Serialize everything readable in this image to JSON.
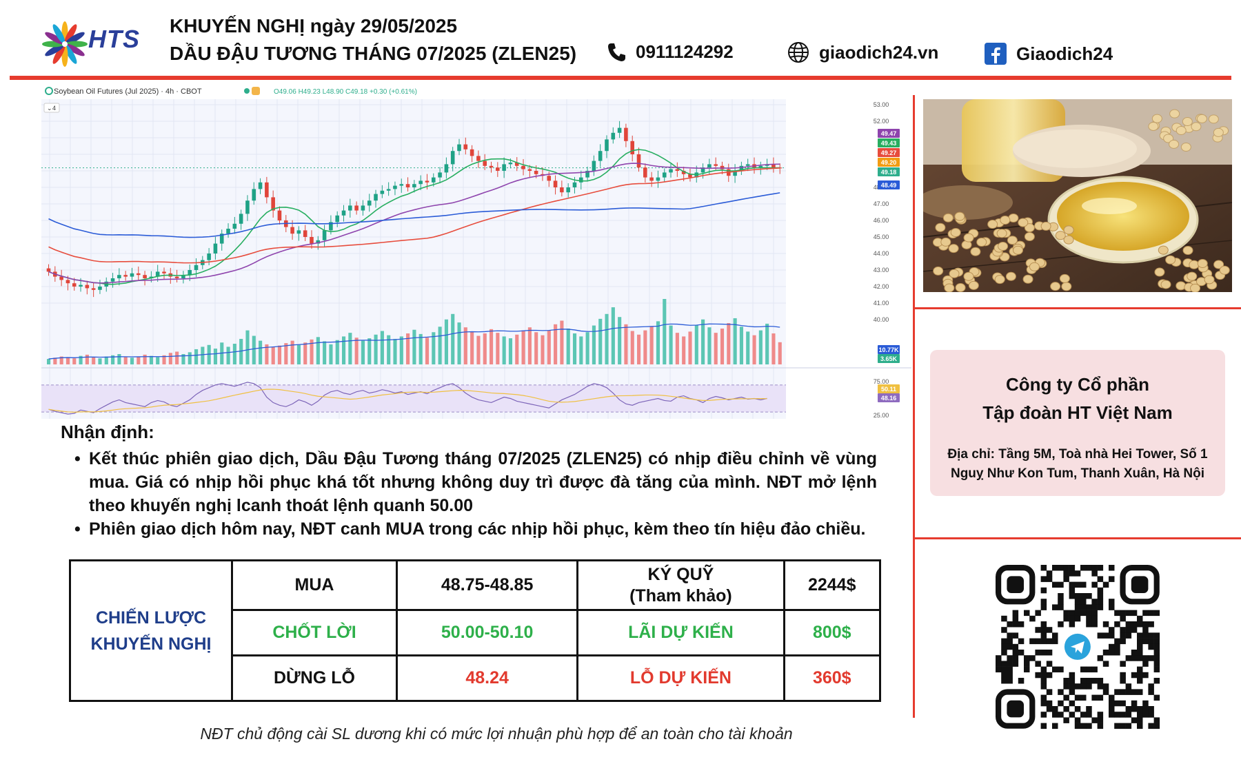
{
  "brand": {
    "logo_text": "HTS",
    "logo_petal_colors": [
      "#f6b21b",
      "#e63b2e",
      "#2a3f9a",
      "#3fb24a",
      "#8a2f8f",
      "#1aa6d6"
    ]
  },
  "header": {
    "line1": "KHUYẾN NGHỊ ngày 29/05/2025",
    "line2": "DẦU ĐẬU TƯƠNG THÁNG 07/2025 (ZLEN25)",
    "phone": "0911124292",
    "website": "giaodich24.vn",
    "facebook": "Giaodich24",
    "phone_icon": "phone-icon",
    "website_icon": "globe-icon",
    "facebook_icon": "facebook-icon"
  },
  "chart_data": {
    "type": "candlestick",
    "symbol_label": "Soybean Oil Futures (Jul 2025) · 4h · CBOT",
    "ohlc_label": "O49.06 H49.23 L48.90 C49.18 +0.30 (+0.61%)",
    "indicator_count": "4",
    "price_axis": {
      "range": [
        40,
        53
      ],
      "ticks": [
        "53.00",
        "52.00",
        "48.00",
        "47.00",
        "46.00",
        "45.00",
        "44.00",
        "43.00",
        "42.00",
        "41.00",
        "40.00"
      ]
    },
    "rsi_axis": {
      "ticks": [
        "75.00",
        "25.00"
      ]
    },
    "price_tags": [
      {
        "value": "49.47",
        "color": "#8e44ad"
      },
      {
        "value": "49.43",
        "color": "#27ae60"
      },
      {
        "value": "49.27",
        "color": "#e74c3c"
      },
      {
        "value": "49.20",
        "color": "#f39c12"
      },
      {
        "value": "49.18",
        "color": "#2eae8c"
      },
      {
        "value": "48.49",
        "color": "#2a5bd7"
      }
    ],
    "volume_tags": [
      {
        "value": "10.77K",
        "color": "#2a5bd7"
      },
      {
        "value": "3.65K",
        "color": "#2eae8c"
      }
    ],
    "rsi_tags": [
      {
        "value": "50.11",
        "color": "#f0c040"
      },
      {
        "value": "48.16",
        "color": "#8e6bbf"
      }
    ],
    "closes": [
      42.9,
      42.6,
      42.4,
      42.2,
      42.0,
      42.1,
      41.9,
      41.8,
      42.0,
      42.3,
      42.5,
      42.7,
      42.6,
      42.8,
      42.7,
      42.5,
      42.6,
      42.9,
      42.8,
      42.6,
      42.5,
      42.7,
      43.0,
      43.3,
      43.6,
      44.0,
      44.6,
      45.2,
      45.5,
      45.8,
      46.4,
      47.2,
      47.9,
      48.3,
      47.4,
      46.6,
      46.0,
      45.6,
      45.2,
      45.4,
      45.0,
      44.6,
      44.8,
      45.4,
      45.9,
      46.3,
      46.6,
      46.9,
      46.6,
      46.9,
      47.2,
      47.6,
      47.8,
      47.9,
      48.1,
      48.2,
      48.0,
      48.2,
      48.4,
      48.3,
      48.6,
      48.9,
      49.4,
      50.2,
      50.6,
      50.3,
      49.9,
      49.6,
      49.3,
      49.2,
      49.0,
      49.4,
      49.5,
      49.3,
      49.1,
      49.0,
      48.8,
      48.7,
      48.4,
      48.0,
      47.7,
      48.0,
      48.3,
      48.6,
      49.0,
      49.6,
      50.2,
      50.9,
      51.3,
      51.6,
      50.8,
      50.0,
      49.2,
      48.6,
      48.4,
      48.6,
      48.9,
      49.1,
      49.0,
      48.8,
      48.6,
      48.9,
      49.2,
      49.4,
      49.3,
      49.1,
      48.7,
      49.0,
      49.3,
      49.4,
      49.2,
      49.3,
      49.4,
      49.2,
      49.18
    ],
    "volumes": [
      900,
      1100,
      1300,
      1200,
      1000,
      1400,
      1600,
      1200,
      1000,
      1300,
      1500,
      1700,
      1200,
      1100,
      1300,
      1600,
      1400,
      1200,
      1500,
      1900,
      2100,
      1700,
      2000,
      2500,
      2900,
      3200,
      2600,
      3600,
      2900,
      3400,
      4200,
      5600,
      4700,
      3900,
      3300,
      2900,
      3100,
      3500,
      3900,
      3200,
      3600,
      4100,
      4500,
      3800,
      3300,
      4000,
      4600,
      5200,
      4400,
      3900,
      4300,
      4900,
      5500,
      4800,
      4200,
      4600,
      5100,
      5700,
      5000,
      4400,
      5300,
      6200,
      7400,
      8300,
      6900,
      6100,
      5400,
      4700,
      5100,
      5800,
      5200,
      4600,
      4300,
      4900,
      5600,
      6100,
      5300,
      4800,
      5600,
      6600,
      7200,
      5900,
      5100,
      4600,
      5300,
      6400,
      7500,
      8300,
      9400,
      7800,
      6600,
      5500,
      4900,
      5600,
      6300,
      7100,
      10770,
      6400,
      5200,
      4600,
      5400,
      6500,
      7400,
      6100,
      5200,
      5900,
      6800,
      7600,
      6200,
      5400,
      4800,
      5600,
      6700,
      5100,
      3650
    ],
    "rsi": [
      34,
      31,
      29,
      27,
      28,
      33,
      31,
      29,
      35,
      40,
      45,
      48,
      44,
      42,
      40,
      38,
      44,
      47,
      45,
      40,
      38,
      43,
      48,
      56,
      62,
      66,
      70,
      72,
      70,
      68,
      71,
      74,
      72,
      66,
      52,
      44,
      40,
      38,
      42,
      48,
      45,
      40,
      46,
      55,
      60,
      62,
      58,
      56,
      60,
      62,
      58,
      60,
      63,
      61,
      58,
      60,
      56,
      58,
      60,
      57,
      62,
      66,
      70,
      72,
      66,
      58,
      52,
      48,
      46,
      44,
      48,
      52,
      50,
      46,
      44,
      42,
      40,
      38,
      36,
      42,
      48,
      52,
      56,
      62,
      68,
      72,
      70,
      66,
      58,
      48,
      42,
      40,
      44,
      46,
      48,
      50,
      47,
      46,
      52,
      54,
      50,
      48,
      44,
      50,
      53,
      51,
      48,
      50,
      52,
      49,
      50,
      48,
      50.11
    ]
  },
  "analysis": {
    "heading": "Nhận định:",
    "bullets": [
      "Kết thúc phiên giao dịch, Dầu Đậu Tương tháng 07/2025 (ZLEN25) có nhịp điều chỉnh về vùng mua. Giá có nhịp hồi phục khá tốt nhưng không duy trì được đà tăng của mình. NĐT mở lệnh theo khuyến nghị lcanh thoát lệnh quanh 50.00",
      "Phiên giao dịch hôm nay, NĐT canh MUA trong các nhịp hồi phục, kèm theo tín hiệu đảo chiều."
    ]
  },
  "strategy": {
    "label_line1": "CHIẾN LƯỢC",
    "label_line2": "KHUYẾN NGHỊ",
    "rows": [
      {
        "action": "MUA",
        "range": "48.75-48.85",
        "metric_line1": "KÝ QUỸ",
        "metric_line2": "(Tham khảo)",
        "amount": "2244$",
        "color": "#111111"
      },
      {
        "action": "CHỐT LỜI",
        "range": "50.00-50.10",
        "metric_line1": "LÃI DỰ KIẾN",
        "metric_line2": "",
        "amount": "800$",
        "color": "#2eb04a"
      },
      {
        "action": "DỪNG LỖ",
        "range": "48.24",
        "metric_line1": "LỖ DỰ KIẾN",
        "metric_line2": "",
        "amount": "360$",
        "color": "#e23a2e"
      }
    ]
  },
  "company": {
    "name_line1": "Công ty Cổ phần",
    "name_line2": "Tập đoàn HT Việt Nam",
    "address": "Địa chỉ: Tầng 5M, Toà nhà Hei Tower, Số 1 Nguỵ Như Kon Tum, Thanh Xuân, Hà Nội"
  },
  "footnote": "NĐT chủ động cài SL dương khi có mức lợi nhuận phù hợp để an toàn cho tài khoản"
}
